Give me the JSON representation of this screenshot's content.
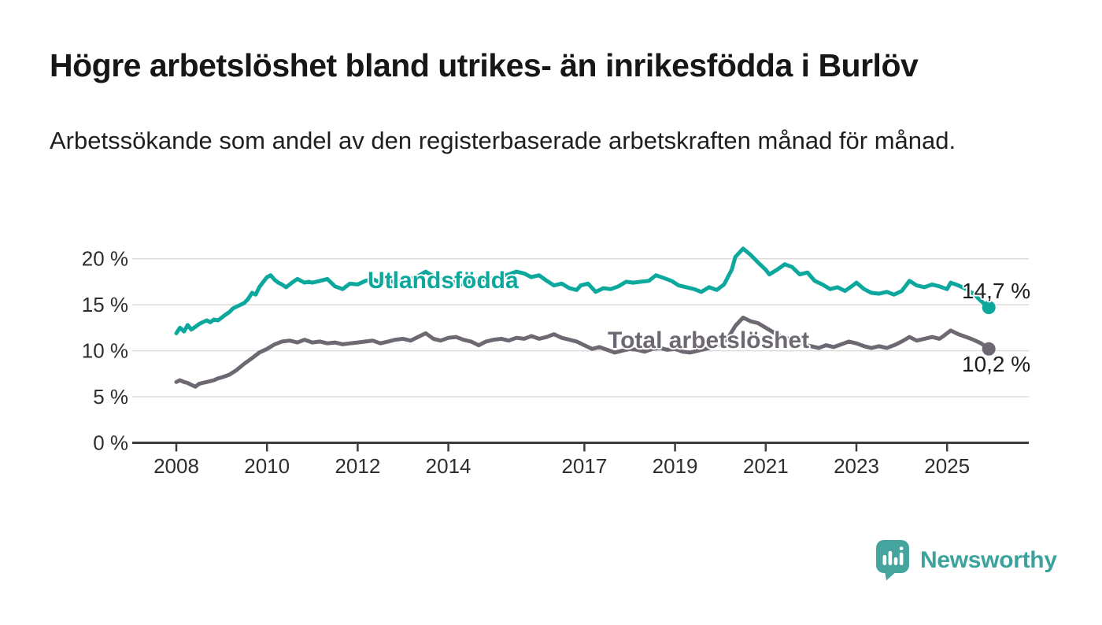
{
  "title": "Högre arbetslöshet bland utrikes- än inrikesfödda i Burlöv",
  "subtitle": "Arbetssökande som andel av den registerbaserade arbetskraften månad för månad.",
  "branding": {
    "logo_text": "Newsworthy",
    "logo_icon": "bar-chart-speech-bubble-icon",
    "logo_color": "#46a49e"
  },
  "colors": {
    "utland_line": "#0ca79d",
    "total_line": "#6d6872",
    "gridline": "#dcdcdc",
    "axis": "#3c3c3c",
    "axis_text": "#2e2e2e"
  },
  "chart_data": {
    "type": "line",
    "title": "Högre arbetslöshet bland utrikes- än inrikesfödda i Burlöv",
    "xlabel": "",
    "ylabel": "Arbetssökande som andel av den registerbaserade arbetskraften",
    "x_unit": "year (fractional years = months)",
    "ylim": [
      0,
      22
    ],
    "xlim": [
      2008,
      2026.2
    ],
    "grid": "horizontal",
    "legend_position": "inline-labels",
    "yticks": [
      {
        "value": 20,
        "label": "20 %"
      },
      {
        "value": 15,
        "label": "15 %"
      },
      {
        "value": 10,
        "label": "10 %"
      },
      {
        "value": 5,
        "label": "5 %"
      },
      {
        "value": 0,
        "label": "0 %"
      }
    ],
    "xticks": [
      {
        "value": 2008,
        "label": "2008"
      },
      {
        "value": 2010,
        "label": "2010"
      },
      {
        "value": 2012,
        "label": "2012"
      },
      {
        "value": 2014,
        "label": "2014"
      },
      {
        "value": 2017,
        "label": "2017"
      },
      {
        "value": 2019,
        "label": "2019"
      },
      {
        "value": 2021,
        "label": "2021"
      },
      {
        "value": 2023,
        "label": "2023"
      },
      {
        "value": 2025,
        "label": "2025"
      }
    ],
    "series": [
      {
        "name": "Utlandsfödda",
        "color": "#0ca79d",
        "end_label": "14,7 %",
        "end_value": 14.7,
        "points": [
          [
            2008.0,
            11.9
          ],
          [
            2008.08,
            12.5
          ],
          [
            2008.17,
            12.1
          ],
          [
            2008.25,
            12.8
          ],
          [
            2008.33,
            12.3
          ],
          [
            2008.42,
            12.6
          ],
          [
            2008.5,
            12.9
          ],
          [
            2008.58,
            13.1
          ],
          [
            2008.67,
            13.3
          ],
          [
            2008.75,
            13.1
          ],
          [
            2008.83,
            13.4
          ],
          [
            2008.92,
            13.3
          ],
          [
            2009.0,
            13.6
          ],
          [
            2009.08,
            13.9
          ],
          [
            2009.17,
            14.2
          ],
          [
            2009.25,
            14.6
          ],
          [
            2009.33,
            14.8
          ],
          [
            2009.42,
            15.0
          ],
          [
            2009.5,
            15.2
          ],
          [
            2009.58,
            15.6
          ],
          [
            2009.67,
            16.3
          ],
          [
            2009.75,
            16.1
          ],
          [
            2009.83,
            16.9
          ],
          [
            2009.92,
            17.5
          ],
          [
            2010.0,
            18.0
          ],
          [
            2010.08,
            18.2
          ],
          [
            2010.17,
            17.7
          ],
          [
            2010.25,
            17.4
          ],
          [
            2010.33,
            17.2
          ],
          [
            2010.42,
            16.9
          ],
          [
            2010.5,
            17.2
          ],
          [
            2010.58,
            17.5
          ],
          [
            2010.67,
            17.8
          ],
          [
            2010.75,
            17.6
          ],
          [
            2010.83,
            17.4
          ],
          [
            2010.92,
            17.5
          ],
          [
            2011.0,
            17.4
          ],
          [
            2011.17,
            17.6
          ],
          [
            2011.33,
            17.8
          ],
          [
            2011.5,
            17.0
          ],
          [
            2011.67,
            16.7
          ],
          [
            2011.83,
            17.3
          ],
          [
            2012.0,
            17.2
          ],
          [
            2012.17,
            17.6
          ],
          [
            2012.33,
            17.8
          ],
          [
            2012.5,
            17.4
          ],
          [
            2012.67,
            17.6
          ],
          [
            2012.83,
            17.5
          ],
          [
            2013.0,
            17.6
          ],
          [
            2013.17,
            17.8
          ],
          [
            2013.33,
            18.1
          ],
          [
            2013.5,
            18.6
          ],
          [
            2013.67,
            18.1
          ],
          [
            2013.83,
            17.8
          ],
          [
            2014.0,
            17.7
          ],
          [
            2014.17,
            17.4
          ],
          [
            2014.33,
            17.2
          ],
          [
            2014.5,
            17.6
          ],
          [
            2014.67,
            17.8
          ],
          [
            2014.83,
            17.7
          ],
          [
            2015.0,
            17.9
          ],
          [
            2015.17,
            18.1
          ],
          [
            2015.33,
            18.3
          ],
          [
            2015.5,
            18.6
          ],
          [
            2015.67,
            18.4
          ],
          [
            2015.83,
            18.0
          ],
          [
            2016.0,
            18.2
          ],
          [
            2016.17,
            17.6
          ],
          [
            2016.33,
            17.1
          ],
          [
            2016.5,
            17.3
          ],
          [
            2016.67,
            16.8
          ],
          [
            2016.83,
            16.6
          ],
          [
            2016.92,
            17.1
          ],
          [
            2017.08,
            17.3
          ],
          [
            2017.25,
            16.4
          ],
          [
            2017.42,
            16.8
          ],
          [
            2017.58,
            16.7
          ],
          [
            2017.75,
            17.0
          ],
          [
            2017.92,
            17.5
          ],
          [
            2018.08,
            17.4
          ],
          [
            2018.25,
            17.5
          ],
          [
            2018.42,
            17.6
          ],
          [
            2018.58,
            18.2
          ],
          [
            2018.75,
            17.9
          ],
          [
            2018.92,
            17.6
          ],
          [
            2019.08,
            17.1
          ],
          [
            2019.25,
            16.9
          ],
          [
            2019.42,
            16.7
          ],
          [
            2019.58,
            16.4
          ],
          [
            2019.75,
            16.9
          ],
          [
            2019.92,
            16.6
          ],
          [
            2020.08,
            17.2
          ],
          [
            2020.25,
            18.8
          ],
          [
            2020.33,
            20.2
          ],
          [
            2020.5,
            21.1
          ],
          [
            2020.67,
            20.4
          ],
          [
            2020.83,
            19.6
          ],
          [
            2021.0,
            18.8
          ],
          [
            2021.08,
            18.3
          ],
          [
            2021.25,
            18.8
          ],
          [
            2021.42,
            19.4
          ],
          [
            2021.58,
            19.1
          ],
          [
            2021.75,
            18.3
          ],
          [
            2021.92,
            18.5
          ],
          [
            2022.08,
            17.6
          ],
          [
            2022.25,
            17.2
          ],
          [
            2022.42,
            16.7
          ],
          [
            2022.58,
            16.9
          ],
          [
            2022.75,
            16.5
          ],
          [
            2022.92,
            17.1
          ],
          [
            2023.0,
            17.4
          ],
          [
            2023.17,
            16.7
          ],
          [
            2023.33,
            16.3
          ],
          [
            2023.5,
            16.2
          ],
          [
            2023.67,
            16.4
          ],
          [
            2023.83,
            16.1
          ],
          [
            2024.0,
            16.5
          ],
          [
            2024.17,
            17.6
          ],
          [
            2024.33,
            17.1
          ],
          [
            2024.5,
            16.9
          ],
          [
            2024.67,
            17.2
          ],
          [
            2024.83,
            17.0
          ],
          [
            2025.0,
            16.7
          ],
          [
            2025.08,
            17.4
          ],
          [
            2025.25,
            17.1
          ],
          [
            2025.42,
            16.7
          ],
          [
            2025.58,
            16.2
          ],
          [
            2025.75,
            15.4
          ],
          [
            2025.92,
            14.7
          ]
        ]
      },
      {
        "name": "Total arbetslöshet",
        "color": "#6d6872",
        "end_label": "10,2 %",
        "end_value": 10.2,
        "points": [
          [
            2008.0,
            6.6
          ],
          [
            2008.08,
            6.8
          ],
          [
            2008.17,
            6.6
          ],
          [
            2008.25,
            6.5
          ],
          [
            2008.33,
            6.3
          ],
          [
            2008.42,
            6.1
          ],
          [
            2008.5,
            6.4
          ],
          [
            2008.58,
            6.5
          ],
          [
            2008.67,
            6.6
          ],
          [
            2008.75,
            6.7
          ],
          [
            2008.83,
            6.8
          ],
          [
            2008.92,
            7.0
          ],
          [
            2009.0,
            7.1
          ],
          [
            2009.17,
            7.4
          ],
          [
            2009.33,
            7.9
          ],
          [
            2009.5,
            8.6
          ],
          [
            2009.67,
            9.2
          ],
          [
            2009.83,
            9.8
          ],
          [
            2010.0,
            10.2
          ],
          [
            2010.17,
            10.7
          ],
          [
            2010.33,
            11.0
          ],
          [
            2010.5,
            11.1
          ],
          [
            2010.67,
            10.9
          ],
          [
            2010.83,
            11.2
          ],
          [
            2011.0,
            10.9
          ],
          [
            2011.17,
            11.0
          ],
          [
            2011.33,
            10.8
          ],
          [
            2011.5,
            10.9
          ],
          [
            2011.67,
            10.7
          ],
          [
            2011.83,
            10.8
          ],
          [
            2012.0,
            10.9
          ],
          [
            2012.17,
            11.0
          ],
          [
            2012.33,
            11.1
          ],
          [
            2012.5,
            10.8
          ],
          [
            2012.67,
            11.0
          ],
          [
            2012.83,
            11.2
          ],
          [
            2013.0,
            11.3
          ],
          [
            2013.17,
            11.1
          ],
          [
            2013.33,
            11.5
          ],
          [
            2013.5,
            11.9
          ],
          [
            2013.67,
            11.3
          ],
          [
            2013.83,
            11.1
          ],
          [
            2014.0,
            11.4
          ],
          [
            2014.17,
            11.5
          ],
          [
            2014.33,
            11.2
          ],
          [
            2014.5,
            11.0
          ],
          [
            2014.67,
            10.6
          ],
          [
            2014.83,
            11.0
          ],
          [
            2015.0,
            11.2
          ],
          [
            2015.17,
            11.3
          ],
          [
            2015.33,
            11.1
          ],
          [
            2015.5,
            11.4
          ],
          [
            2015.67,
            11.3
          ],
          [
            2015.83,
            11.6
          ],
          [
            2016.0,
            11.3
          ],
          [
            2016.17,
            11.5
          ],
          [
            2016.33,
            11.8
          ],
          [
            2016.5,
            11.4
          ],
          [
            2016.67,
            11.2
          ],
          [
            2016.83,
            11.0
          ],
          [
            2017.0,
            10.6
          ],
          [
            2017.17,
            10.2
          ],
          [
            2017.33,
            10.4
          ],
          [
            2017.5,
            10.1
          ],
          [
            2017.67,
            9.8
          ],
          [
            2017.83,
            10.0
          ],
          [
            2018.0,
            10.2
          ],
          [
            2018.17,
            10.1
          ],
          [
            2018.33,
            9.9
          ],
          [
            2018.5,
            10.2
          ],
          [
            2018.67,
            10.3
          ],
          [
            2018.83,
            10.1
          ],
          [
            2019.0,
            10.2
          ],
          [
            2019.17,
            9.9
          ],
          [
            2019.33,
            9.8
          ],
          [
            2019.5,
            10.0
          ],
          [
            2019.67,
            10.2
          ],
          [
            2019.83,
            10.4
          ],
          [
            2020.0,
            10.7
          ],
          [
            2020.17,
            11.4
          ],
          [
            2020.33,
            12.7
          ],
          [
            2020.5,
            13.6
          ],
          [
            2020.67,
            13.2
          ],
          [
            2020.83,
            13.0
          ],
          [
            2021.0,
            12.5
          ],
          [
            2021.17,
            12.0
          ],
          [
            2021.33,
            11.6
          ],
          [
            2021.5,
            11.3
          ],
          [
            2021.67,
            11.0
          ],
          [
            2021.83,
            10.7
          ],
          [
            2022.0,
            10.5
          ],
          [
            2022.17,
            10.3
          ],
          [
            2022.33,
            10.6
          ],
          [
            2022.5,
            10.4
          ],
          [
            2022.67,
            10.7
          ],
          [
            2022.83,
            11.0
          ],
          [
            2023.0,
            10.8
          ],
          [
            2023.17,
            10.5
          ],
          [
            2023.33,
            10.3
          ],
          [
            2023.5,
            10.5
          ],
          [
            2023.67,
            10.3
          ],
          [
            2023.83,
            10.6
          ],
          [
            2024.0,
            11.0
          ],
          [
            2024.17,
            11.5
          ],
          [
            2024.33,
            11.1
          ],
          [
            2024.5,
            11.3
          ],
          [
            2024.67,
            11.5
          ],
          [
            2024.83,
            11.3
          ],
          [
            2024.92,
            11.6
          ],
          [
            2025.08,
            12.2
          ],
          [
            2025.25,
            11.8
          ],
          [
            2025.42,
            11.5
          ],
          [
            2025.58,
            11.2
          ],
          [
            2025.75,
            10.8
          ],
          [
            2025.92,
            10.2
          ]
        ]
      }
    ]
  }
}
